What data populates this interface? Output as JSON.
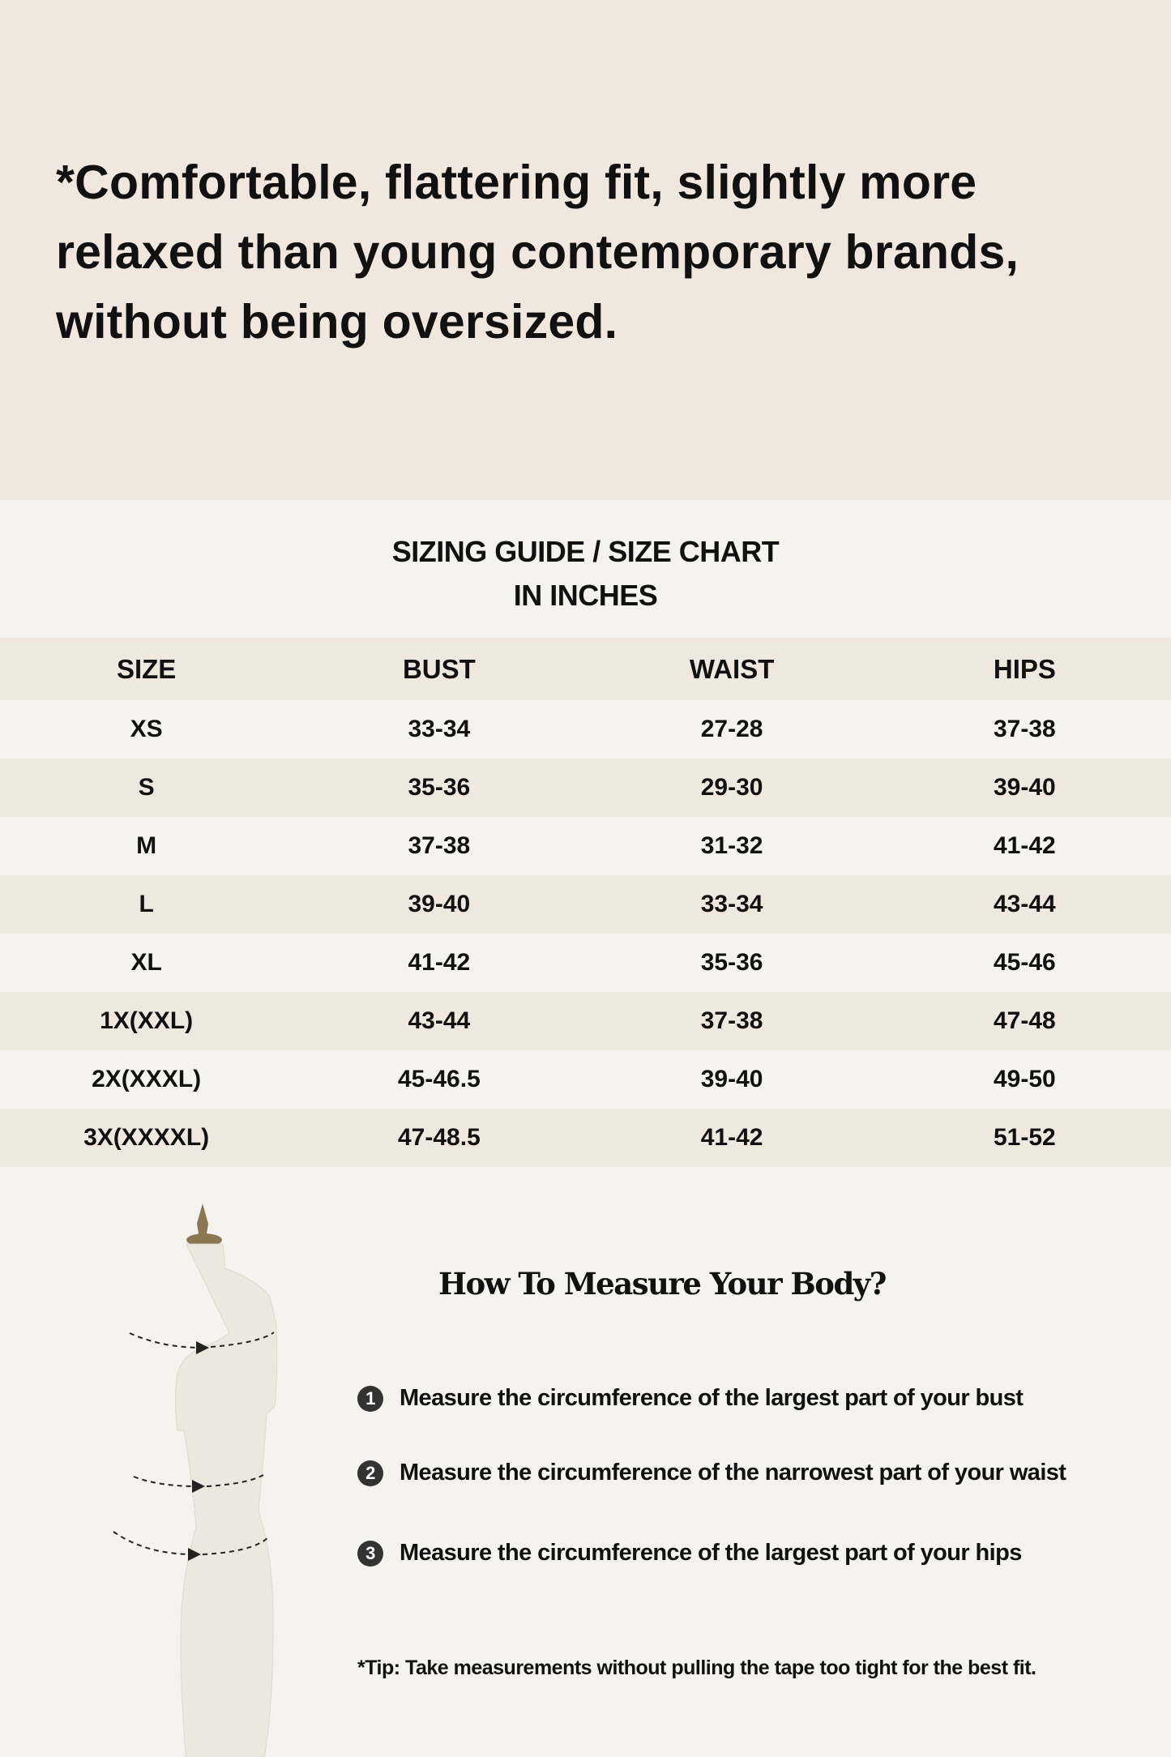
{
  "headline": [
    "*Comfortable, flattering fit, slightly more",
    "relaxed than young contemporary brands,",
    "without being oversized."
  ],
  "size_chart": {
    "title_line1": "SIZING GUIDE / SIZE CHART",
    "title_line2": "IN INCHES",
    "columns": [
      "SIZE",
      "BUST",
      "WAIST",
      "HIPS"
    ],
    "rows": [
      [
        "XS",
        "33-34",
        "27-28",
        "37-38"
      ],
      [
        "S",
        "35-36",
        "29-30",
        "39-40"
      ],
      [
        "M",
        "37-38",
        "31-32",
        "41-42"
      ],
      [
        "L",
        "39-40",
        "33-34",
        "43-44"
      ],
      [
        "XL",
        "41-42",
        "35-36",
        "45-46"
      ],
      [
        "1X(XXL)",
        "43-44",
        "37-38",
        "47-48"
      ],
      [
        "2X(XXXL)",
        "45-46.5",
        "39-40",
        "49-50"
      ],
      [
        "3X(XXXXL)",
        "47-48.5",
        "41-42",
        "51-52"
      ]
    ]
  },
  "measure": {
    "heading": "How To Measure Your Body?",
    "steps": [
      {
        "num": "1",
        "text": "Measure the circumference of the largest part of your bust"
      },
      {
        "num": "2",
        "text": "Measure the circumference of the narrowest part of your waist"
      },
      {
        "num": "3",
        "text": "Measure the circumference of the largest part of your hips"
      }
    ],
    "tip": "*Tip: Take measurements without pulling the tape too tight for the best fit."
  },
  "colors": {
    "top_bg": "#f0e8df",
    "page_bg": "#f4f3ef",
    "stripe": "#efe8df",
    "text": "#111111"
  }
}
